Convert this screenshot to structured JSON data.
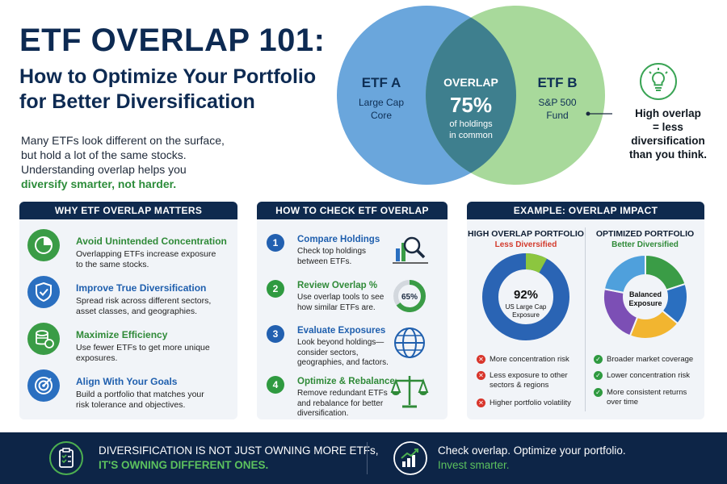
{
  "header": {
    "title": "ETF OVERLAP 101:",
    "subtitle_line1": "How to Optimize Your Portfolio",
    "subtitle_line2": "for Better Diversification",
    "intro_line1": "Many ETFs look different on the surface,",
    "intro_line2": "but hold a lot of the same stocks.",
    "intro_line3": "Understanding overlap helps you",
    "intro_highlight": "diversify smarter, not harder."
  },
  "venn": {
    "left_title": "ETF A",
    "left_line1": "Large Cap",
    "left_line2": "Core",
    "right_title": "ETF B",
    "right_line1": "S&P 500",
    "right_line2": "Fund",
    "overlap_title": "OVERLAP",
    "overlap_value": "75%",
    "overlap_line1": "of holdings",
    "overlap_line2": "in common",
    "colors": {
      "left": "#5b9bd6",
      "right": "#9ed391",
      "overlap": "#3e7d8f"
    }
  },
  "insight": {
    "icon": "lightbulb-icon",
    "line1": "High overlap",
    "line2": "= less",
    "line3": "diversification",
    "line4": "than you think."
  },
  "why": {
    "heading": "WHY ETF OVERLAP MATTERS",
    "items": [
      {
        "icon": "pie-chart-icon",
        "title": "Avoid Unintended Concentration",
        "desc1": "Overlapping ETFs increase exposure",
        "desc2": "to the same stocks."
      },
      {
        "icon": "shield-check-icon",
        "title": "Improve True Diversification",
        "desc1": "Spread risk across different sectors,",
        "desc2": "asset classes, and geographies."
      },
      {
        "icon": "coins-icon",
        "title": "Maximize Efficiency",
        "desc1": "Use fewer ETFs to get more unique",
        "desc2": "exposures."
      },
      {
        "icon": "target-icon",
        "title": "Align With Your Goals",
        "desc1": "Build a portfolio that matches your",
        "desc2": "risk tolerance and objectives."
      }
    ]
  },
  "how": {
    "heading": "HOW TO CHECK ETF OVERLAP",
    "steps": [
      {
        "num": "1",
        "icon": "magnifier-chart-icon",
        "title": "Compare Holdings",
        "desc1": "Check top holdings",
        "desc2": "between ETFs.",
        "desc3": ""
      },
      {
        "num": "2",
        "icon": "donut-65-icon",
        "donut_label": "65%",
        "title": "Review Overlap %",
        "desc1": "Use overlap tools to see",
        "desc2": "how similar ETFs are.",
        "desc3": ""
      },
      {
        "num": "3",
        "icon": "globe-icon",
        "title": "Evaluate Exposures",
        "desc1": "Look beyond holdings—",
        "desc2": "consider sectors,",
        "desc3": "geographies, and factors."
      },
      {
        "num": "4",
        "icon": "scales-icon",
        "title": "Optimize & Rebalance",
        "desc1": "Remove redundant ETFs",
        "desc2": "and rebalance for better",
        "desc3": "diversification."
      }
    ]
  },
  "example": {
    "heading": "EXAMPLE: OVERLAP IMPACT",
    "high": {
      "title": "HIGH OVERLAP PORTFOLIO",
      "subtitle": "Less Diversified",
      "center_value": "92%",
      "center_line1": "US Large Cap",
      "center_line2": "Exposure",
      "bullets": [
        {
          "l1": "More concentration risk",
          "l2": ""
        },
        {
          "l1": "Less exposure to other",
          "l2": "sectors & regions"
        },
        {
          "l1": "Higher portfolio volatility",
          "l2": ""
        }
      ]
    },
    "optimized": {
      "title": "OPTIMIZED PORTFOLIO",
      "subtitle": "Better Diversified",
      "center_line1": "Balanced",
      "center_line2": "Exposure",
      "bullets": [
        {
          "l1": "Broader market coverage",
          "l2": ""
        },
        {
          "l1": "Lower concentration risk",
          "l2": ""
        },
        {
          "l1": "More consistent returns",
          "l2": "over time"
        }
      ]
    },
    "high_share": 0.92,
    "optimized_shares": [
      0.2,
      0.16,
      0.2,
      0.22,
      0.22
    ],
    "optimized_colors": [
      "#3a9c46",
      "#2a6fc0",
      "#f2b530",
      "#7c4fb5",
      "#4fa0dc"
    ],
    "high_colors": [
      "#2a64b4",
      "#8cc63f"
    ]
  },
  "footer": {
    "left_line1": "DIVERSIFICATION IS NOT JUST OWNING MORE ETFs,",
    "left_line2": "IT'S OWNING DIFFERENT ONES.",
    "right_line1": "Check overlap. Optimize your portfolio.",
    "right_line2": "Invest smarter.",
    "left_icon": "clipboard-check-icon",
    "right_icon": "growth-chart-icon"
  }
}
